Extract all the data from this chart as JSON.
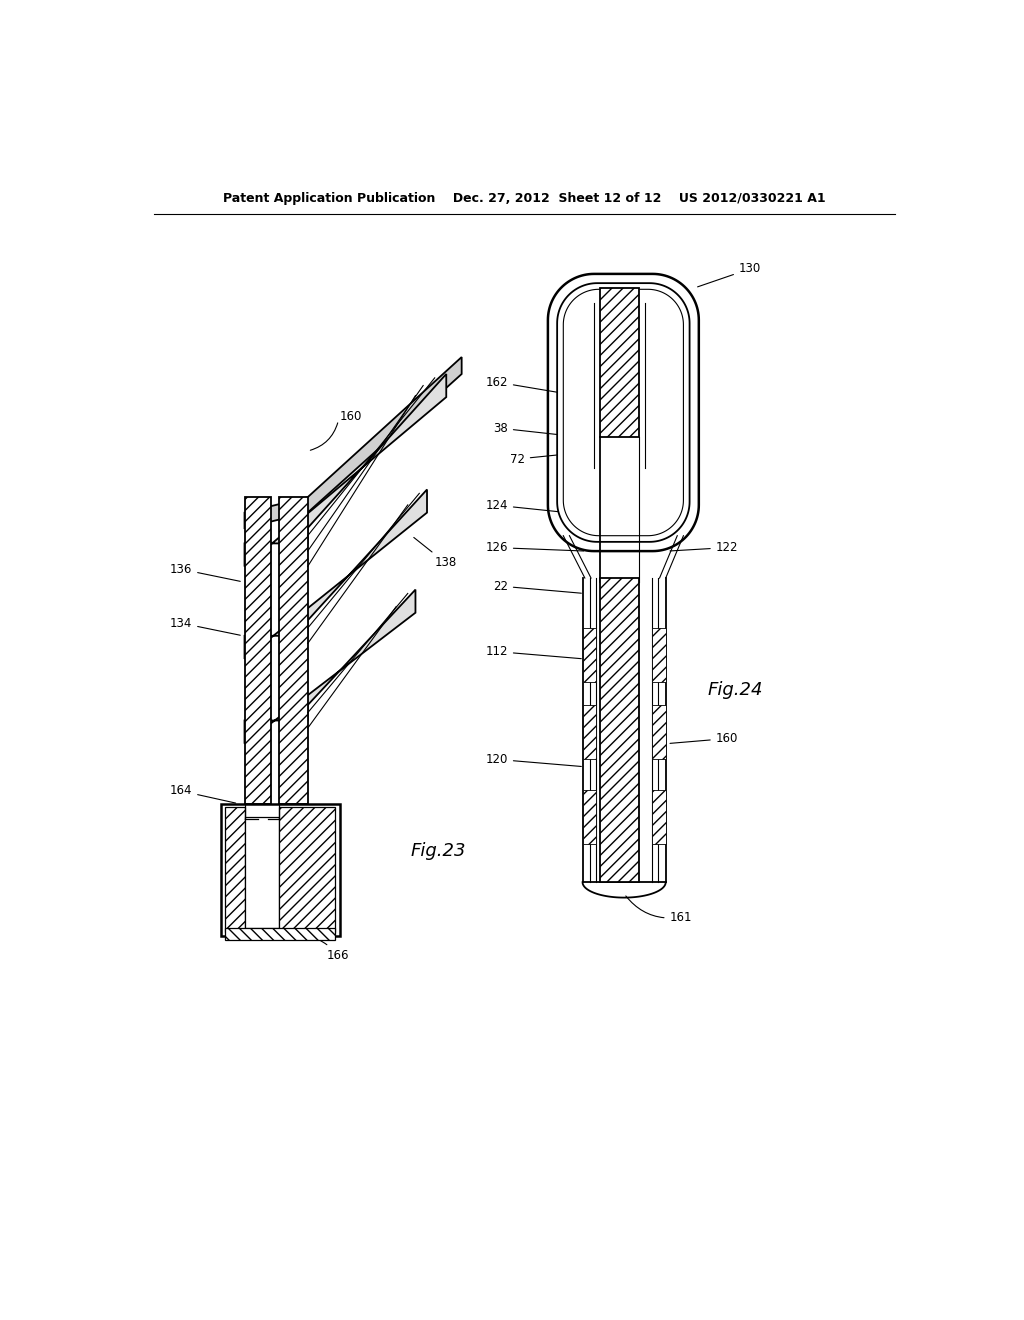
{
  "bg_color": "#ffffff",
  "line_color": "#000000",
  "header_text": "Patent Application Publication    Dec. 27, 2012  Sheet 12 of 12    US 2012/0330221 A1",
  "fig23_label": "Fig.23",
  "fig24_label": "Fig.24"
}
